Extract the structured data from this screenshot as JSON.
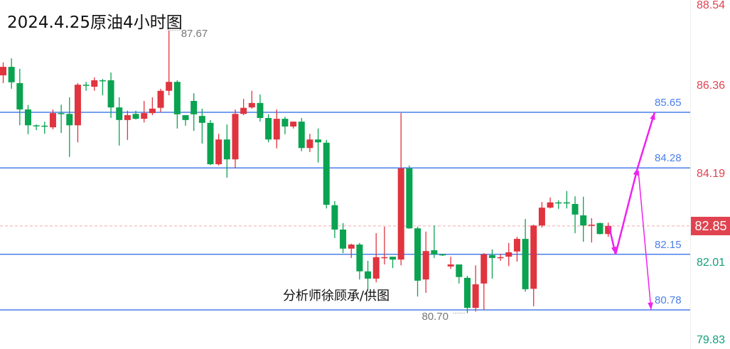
{
  "title": "2024.4.25原油4小时图",
  "watermark": "分析师徐顾承/供图",
  "colors": {
    "up": "#e0343f",
    "down": "#0aa351",
    "level_line": "#4a7fe8",
    "arrow": "#ee22ee",
    "current": "#e0434f"
  },
  "chart_data": {
    "type": "candlestick",
    "title": "2024.4.25原油4小时图",
    "up_color": "red",
    "down_color": "green",
    "ylim": [
      79.83,
      88.54
    ],
    "y_ticks": [
      {
        "label": "88.54",
        "value": 88.54,
        "color": "#e0434f"
      },
      {
        "label": "86.36",
        "value": 86.36,
        "color": "#e0434f"
      },
      {
        "label": "84.19",
        "value": 84.19,
        "color": "#e0434f"
      },
      {
        "label": "82.01",
        "value": 82.01,
        "color": "#12a07a"
      },
      {
        "label": "79.83",
        "value": 79.83,
        "color": "#12a07a"
      }
    ],
    "current_price": {
      "label": "82.85",
      "value": 82.85
    },
    "high_annotation": {
      "label": "87.67",
      "value": 87.67,
      "index": 20
    },
    "low_annotation": {
      "label": "80.70",
      "value": 80.7,
      "index": 56
    },
    "levels": [
      {
        "label": "85.65",
        "value": 85.65
      },
      {
        "label": "84.28",
        "value": 84.28
      },
      {
        "label": "82.15",
        "value": 82.15
      },
      {
        "label": "80.78",
        "value": 80.78
      }
    ],
    "forecast_path": [
      {
        "from": 82.85,
        "to": 82.15
      },
      {
        "from": 82.15,
        "to": 84.28
      },
      {
        "from": 84.28,
        "to": 85.65
      },
      {
        "from": 84.28,
        "to": 80.78
      }
    ],
    "ohlc": [
      [
        86.56,
        86.88,
        86.37,
        86.77
      ],
      [
        86.77,
        86.98,
        86.23,
        86.39
      ],
      [
        86.37,
        86.72,
        85.33,
        85.72
      ],
      [
        85.72,
        85.83,
        85.11,
        85.33
      ],
      [
        85.33,
        85.35,
        85.21,
        85.32
      ],
      [
        85.32,
        85.42,
        85.12,
        85.3
      ],
      [
        85.28,
        85.72,
        85.23,
        85.63
      ],
      [
        85.63,
        85.84,
        85.14,
        85.61
      ],
      [
        85.61,
        86.02,
        84.55,
        85.33
      ],
      [
        85.33,
        86.37,
        84.91,
        86.33
      ],
      [
        86.33,
        86.4,
        86.18,
        86.32
      ],
      [
        86.28,
        86.51,
        86.18,
        86.44
      ],
      [
        86.44,
        86.47,
        86.07,
        86.42
      ],
      [
        86.44,
        86.63,
        85.51,
        85.77
      ],
      [
        85.77,
        86.02,
        84.83,
        85.46
      ],
      [
        85.46,
        85.69,
        84.97,
        85.58
      ],
      [
        85.61,
        85.69,
        85.47,
        85.49
      ],
      [
        85.49,
        85.93,
        85.4,
        85.63
      ],
      [
        85.63,
        86.02,
        85.58,
        85.74
      ],
      [
        85.76,
        86.23,
        85.65,
        86.18
      ],
      [
        86.18,
        87.67,
        86.07,
        86.4
      ],
      [
        86.4,
        86.44,
        85.25,
        85.6
      ],
      [
        85.58,
        85.58,
        85.32,
        85.46
      ],
      [
        85.93,
        86.12,
        85.19,
        85.6
      ],
      [
        85.56,
        85.74,
        84.88,
        85.39
      ],
      [
        85.39,
        85.46,
        84.35,
        84.37
      ],
      [
        84.37,
        85.12,
        84.34,
        84.98
      ],
      [
        84.98,
        85.35,
        84.04,
        84.49
      ],
      [
        84.49,
        85.72,
        84.27,
        85.61
      ],
      [
        85.61,
        85.98,
        85.58,
        85.76
      ],
      [
        85.77,
        86.18,
        85.74,
        85.88
      ],
      [
        85.88,
        86.09,
        85.42,
        85.51
      ],
      [
        85.51,
        85.6,
        84.91,
        84.98
      ],
      [
        84.98,
        85.72,
        84.76,
        85.49
      ],
      [
        85.49,
        85.54,
        85.11,
        85.3
      ],
      [
        85.3,
        85.42,
        85.25,
        85.42
      ],
      [
        85.42,
        85.51,
        84.69,
        84.77
      ],
      [
        84.77,
        85.12,
        84.67,
        84.98
      ],
      [
        84.98,
        85.25,
        84.41,
        84.91
      ],
      [
        84.9,
        84.97,
        83.28,
        83.37
      ],
      [
        83.36,
        83.46,
        82.55,
        82.76
      ],
      [
        82.76,
        82.92,
        82.18,
        82.29
      ],
      [
        82.29,
        82.41,
        82.06,
        82.39
      ],
      [
        82.39,
        82.43,
        81.53,
        81.73
      ],
      [
        81.73,
        81.99,
        81.29,
        81.55
      ],
      [
        81.55,
        82.67,
        81.46,
        82.08
      ],
      [
        82.06,
        82.83,
        81.9,
        82.08
      ],
      [
        82.09,
        82.09,
        81.81,
        82.02
      ],
      [
        82.02,
        85.63,
        81.88,
        84.27
      ],
      [
        84.27,
        84.34,
        82.78,
        82.79
      ],
      [
        82.79,
        82.83,
        81.11,
        81.5
      ],
      [
        81.53,
        82.71,
        81.2,
        82.23
      ],
      [
        82.25,
        82.86,
        82.06,
        82.15
      ],
      [
        82.15,
        82.16,
        82.11,
        82.13
      ],
      [
        81.85,
        82.09,
        81.79,
        81.9
      ],
      [
        81.9,
        81.9,
        81.43,
        81.59
      ],
      [
        81.57,
        81.62,
        80.7,
        80.83
      ],
      [
        80.83,
        81.88,
        80.74,
        81.41
      ],
      [
        81.43,
        82.18,
        80.78,
        82.15
      ],
      [
        82.13,
        82.27,
        81.55,
        82.06
      ],
      [
        82.06,
        82.16,
        81.99,
        82.08
      ],
      [
        82.09,
        82.43,
        81.86,
        82.2
      ],
      [
        82.22,
        82.58,
        81.97,
        82.53
      ],
      [
        82.53,
        83.02,
        81.23,
        81.29
      ],
      [
        81.3,
        82.88,
        80.87,
        82.86
      ],
      [
        82.86,
        83.44,
        82.81,
        83.3
      ],
      [
        83.3,
        83.55,
        83.28,
        83.43
      ],
      [
        83.43,
        83.48,
        83.27,
        83.42
      ],
      [
        83.43,
        83.71,
        83.28,
        83.42
      ],
      [
        83.39,
        83.58,
        82.67,
        83.13
      ],
      [
        83.11,
        83.57,
        82.46,
        82.86
      ],
      [
        82.86,
        83.04,
        82.44,
        82.88
      ],
      [
        82.92,
        82.93,
        82.64,
        82.65
      ],
      [
        82.65,
        82.93,
        82.58,
        82.85
      ]
    ]
  }
}
